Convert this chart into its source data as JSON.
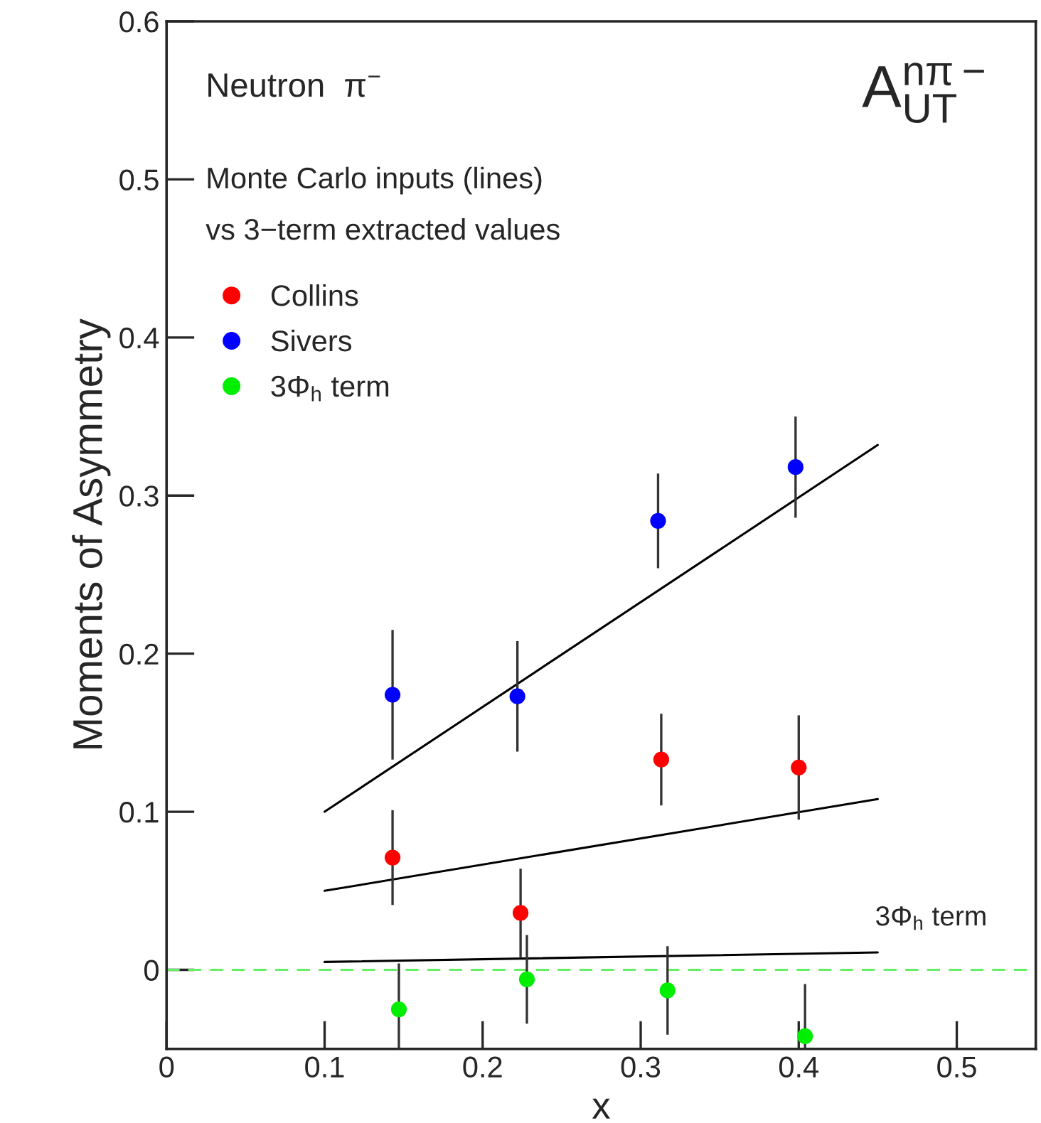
{
  "chart_data": {
    "type": "scatter",
    "xlabel": "x",
    "ylabel": "Moments of Asymmetry",
    "xlim": [
      0,
      0.55
    ],
    "ylim": [
      -0.05,
      0.6
    ],
    "xticks": [
      0,
      0.1,
      0.2,
      0.3,
      0.4,
      0.5
    ],
    "yticks": [
      0,
      0.1,
      0.2,
      0.3,
      0.4,
      0.5,
      0.6
    ],
    "grid": false,
    "legend": "top left",
    "marker": "circle",
    "series": [
      {
        "name": "Collins",
        "color": "#ff0000",
        "x": [
          0.143,
          0.224,
          0.313,
          0.4
        ],
        "values": [
          0.071,
          0.036,
          0.133,
          0.128
        ],
        "errors": [
          0.03,
          0.028,
          0.029,
          0.033
        ]
      },
      {
        "name": "Sivers",
        "color": "#0000ff",
        "x": [
          0.143,
          0.222,
          0.311,
          0.398
        ],
        "values": [
          0.174,
          0.173,
          0.284,
          0.318
        ],
        "errors": [
          0.041,
          0.035,
          0.03,
          0.032
        ]
      },
      {
        "name": "3Φ$_{h}$ term",
        "color": "#00ee00",
        "x": [
          0.147,
          0.228,
          0.317,
          0.404
        ],
        "values": [
          -0.025,
          -0.006,
          -0.013,
          -0.042
        ],
        "errors": [
          [
            -0.05,
            0.004
          ],
          0.028,
          0.028,
          [
            -0.05,
            -0.009
          ]
        ]
      },
      {
        "type": "line",
        "marker": "none",
        "color": "#000000",
        "x": [
          0.1,
          0.45
        ],
        "values": [
          0.1,
          0.332
        ]
      },
      {
        "type": "line",
        "marker": "none",
        "color": "#000000",
        "x": [
          0.1,
          0.45
        ],
        "values": [
          0.05,
          0.108
        ]
      },
      {
        "type": "line",
        "marker": "none",
        "color": "#000000",
        "x": [
          0.1,
          0.45
        ],
        "values": [
          0.005,
          0.011
        ]
      }
    ],
    "ref_lines": [
      {
        "axis": "y",
        "value": 0,
        "color": "#66ee66",
        "line_style": "dashed"
      }
    ],
    "annotations": [
      "Neutron  π$^{−}$",
      "A$^{nπ−}$$_{UT}$",
      "Monte Carlo inputs (lines)",
      "vs 3−term extracted values",
      "3Φ$_{h}$ term"
    ]
  }
}
